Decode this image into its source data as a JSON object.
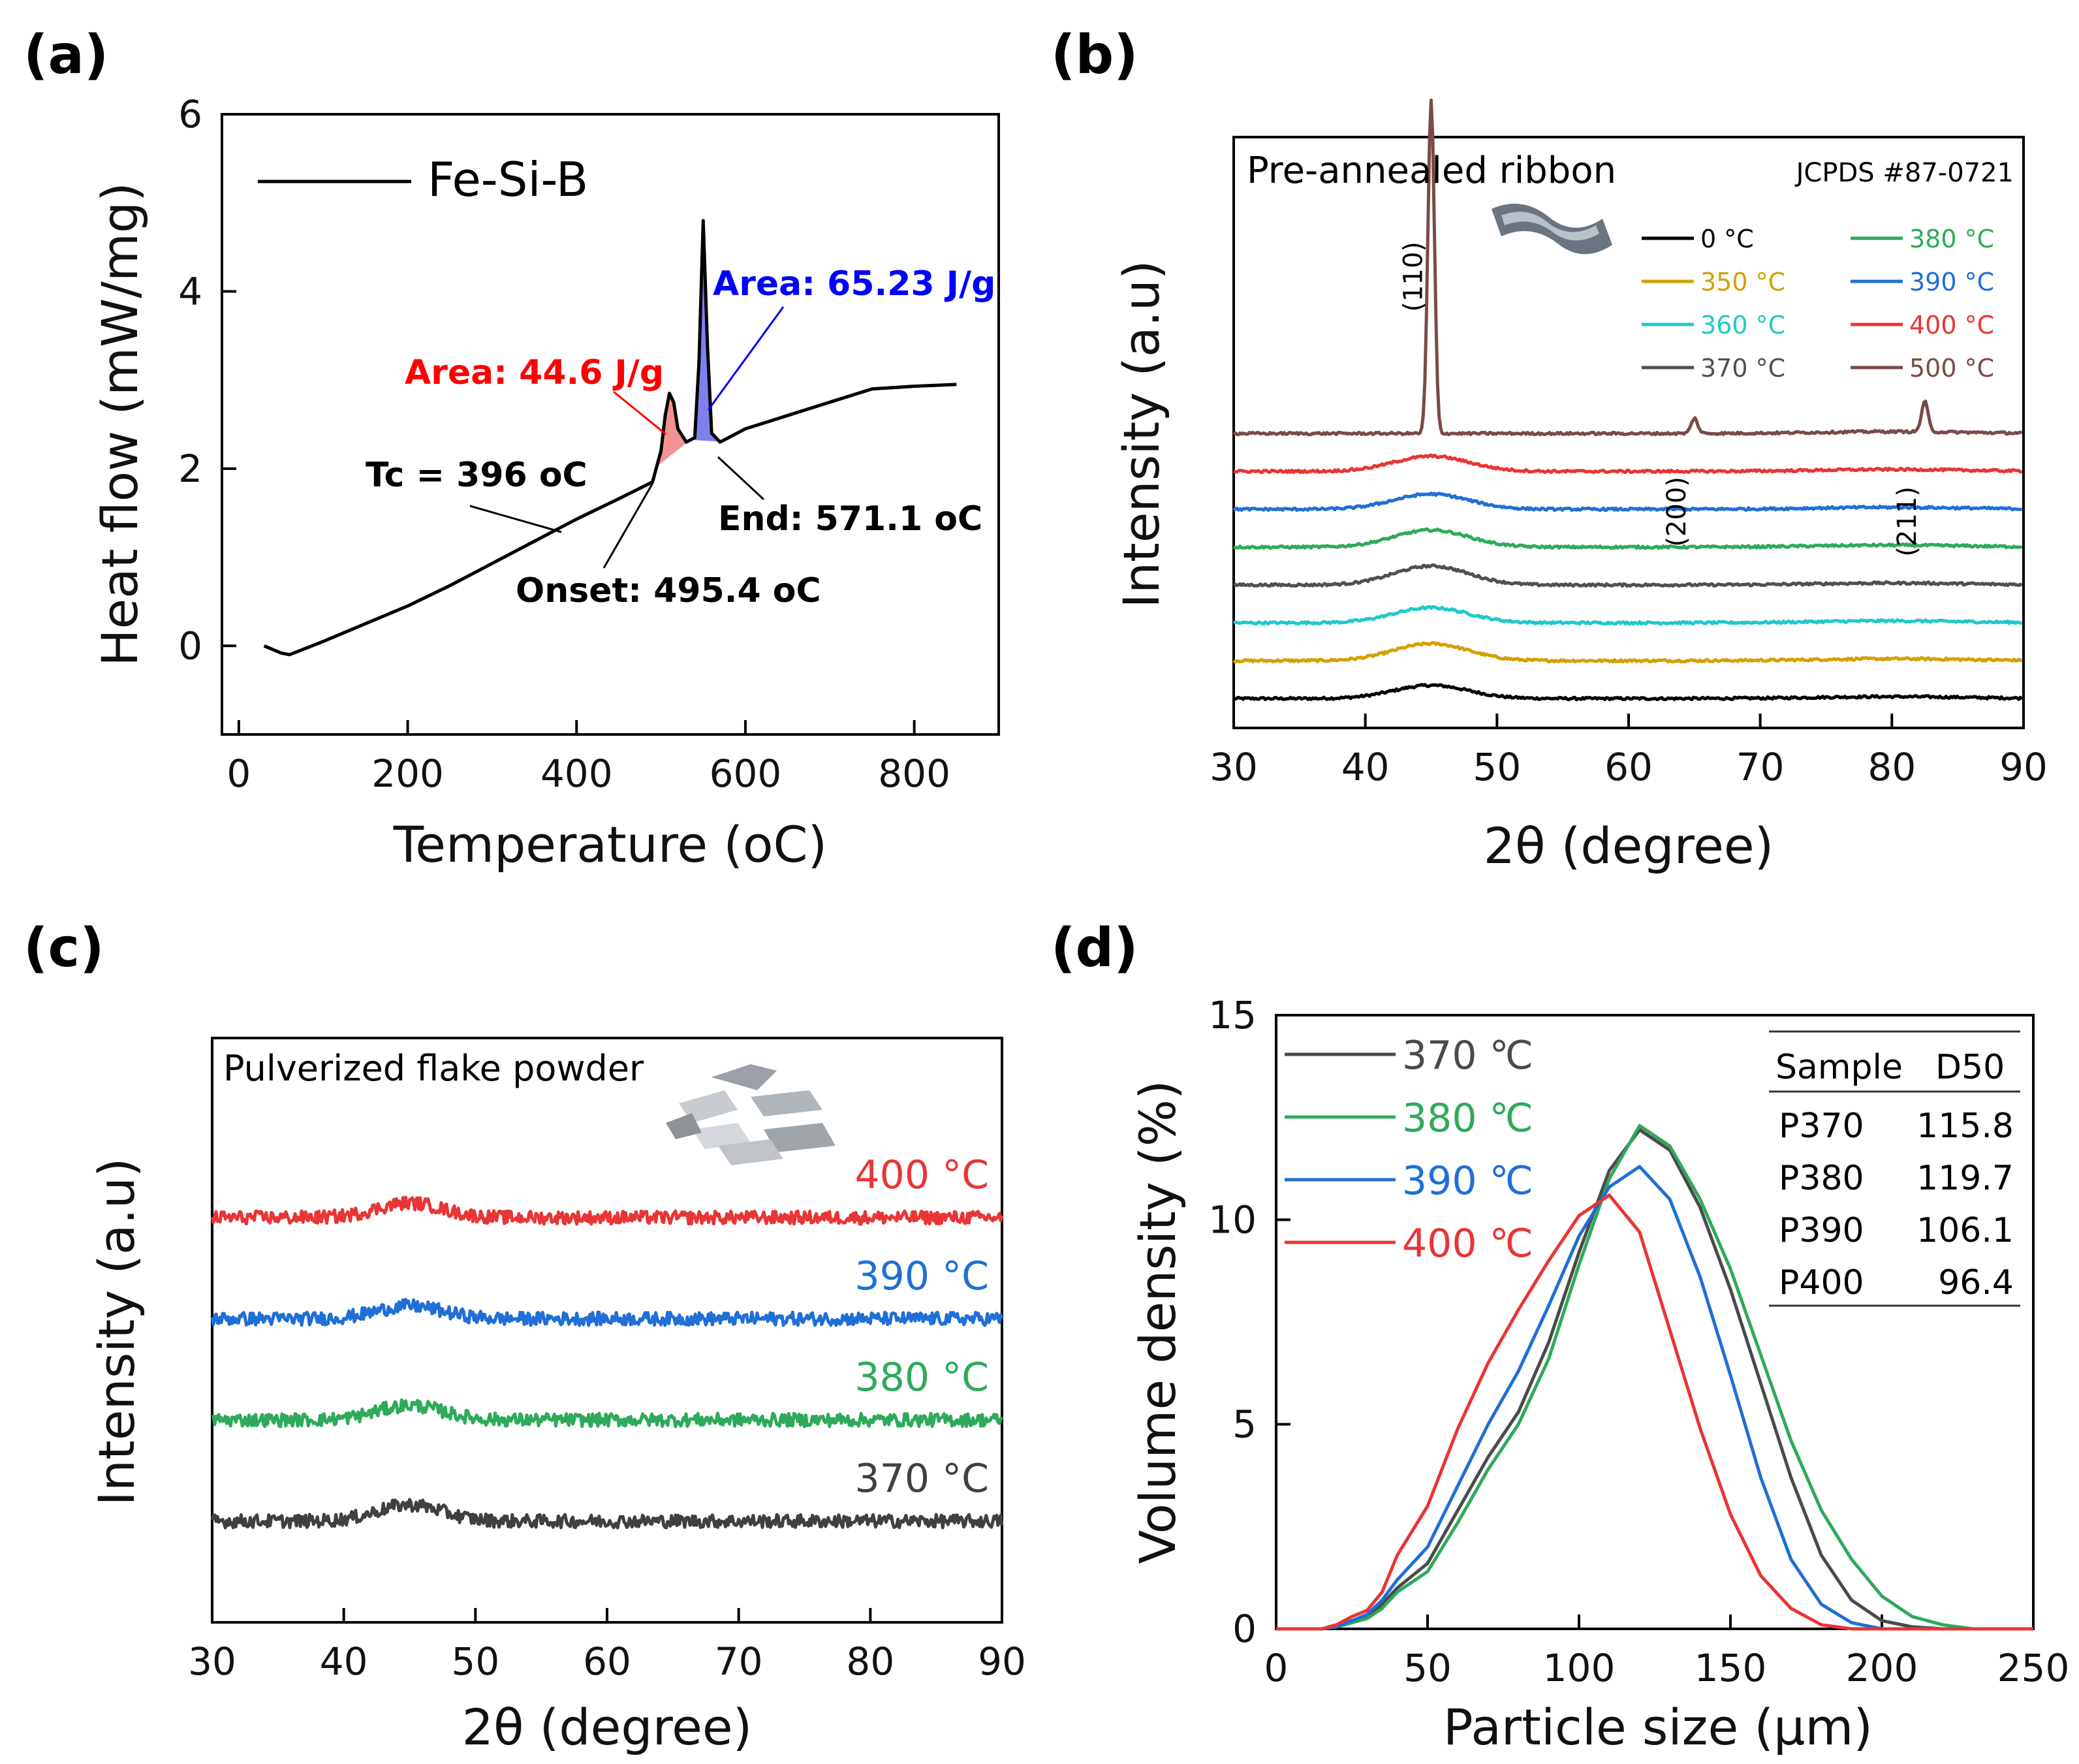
{
  "chart_data": [
    {
      "panel": "(a)",
      "type": "line",
      "xlabel": "Temperature (oC)",
      "ylabel": "Heat flow (mW/mg)",
      "xlim": [
        -20,
        900
      ],
      "ylim": [
        -1,
        6
      ],
      "xticks": [
        0,
        200,
        400,
        600,
        800
      ],
      "yticks": [
        0,
        2,
        4,
        6
      ],
      "legend": "Fe-Si-B",
      "series": [
        {
          "name": "Fe-Si-B",
          "color": "#000000",
          "x": [
            30,
            50,
            60,
            100,
            150,
            200,
            250,
            300,
            350,
            400,
            450,
            490,
            500,
            505,
            510,
            515,
            520,
            530,
            540,
            545,
            550,
            555,
            560,
            570,
            580,
            600,
            650,
            700,
            750,
            800,
            850
          ],
          "y": [
            0.0,
            -0.08,
            -0.1,
            0.05,
            0.25,
            0.45,
            0.68,
            0.93,
            1.18,
            1.43,
            1.66,
            1.85,
            2.2,
            2.6,
            2.85,
            2.75,
            2.45,
            2.3,
            2.35,
            3.2,
            4.8,
            3.4,
            2.4,
            2.3,
            2.35,
            2.45,
            2.6,
            2.75,
            2.9,
            2.93,
            2.95
          ]
        }
      ],
      "annotations": [
        {
          "text": "Area: 44.6 J/g",
          "color": "#ff0000"
        },
        {
          "text": "Area: 65.23 J/g",
          "color": "#0000ff"
        },
        {
          "text": "Tc = 396 oC",
          "color": "#000000"
        },
        {
          "text": "Onset: 495.4 oC",
          "color": "#000000"
        },
        {
          "text": "End: 571.1 oC",
          "color": "#000000"
        }
      ],
      "shaded_peaks": [
        {
          "x_from": 495,
          "x_to": 535,
          "color": "#f08080"
        },
        {
          "x_from": 535,
          "x_to": 571,
          "color": "#6a6ae8"
        }
      ]
    },
    {
      "panel": "(b)",
      "type": "line",
      "title": "Pre-annealed ribbon",
      "reference": "JCPDS #87-0721",
      "xlabel": "2θ (degree)",
      "ylabel": "Intensity (a.u)",
      "xlim": [
        30,
        90
      ],
      "xticks": [
        30,
        40,
        50,
        60,
        70,
        80,
        90
      ],
      "peak_labels": [
        {
          "text": "(110)",
          "x": 45
        },
        {
          "text": "(200)",
          "x": 65
        },
        {
          "text": "(211)",
          "x": 82.5
        }
      ],
      "series": [
        {
          "name": "0 °C",
          "color": "#000000",
          "baseline": 0,
          "hump": 0.35
        },
        {
          "name": "350 °C",
          "color": "#d4a000",
          "baseline": 1,
          "hump": 0.45
        },
        {
          "name": "360 °C",
          "color": "#22c8c8",
          "baseline": 2,
          "hump": 0.4
        },
        {
          "name": "370 °C",
          "color": "#505050",
          "baseline": 3,
          "hump": 0.5
        },
        {
          "name": "380 °C",
          "color": "#2eaa5a",
          "baseline": 4,
          "hump": 0.45
        },
        {
          "name": "390 °C",
          "color": "#1f6fd6",
          "baseline": 5,
          "hump": 0.4
        },
        {
          "name": "400 °C",
          "color": "#e83535",
          "baseline": 6,
          "hump": 0.4
        },
        {
          "name": "500 °C",
          "color": "#7a4a48",
          "baseline": 7,
          "hump": 0,
          "peaks": [
            [
              45,
              8.8
            ],
            [
              65,
              0.4
            ],
            [
              82.5,
              0.8
            ]
          ]
        }
      ]
    },
    {
      "panel": "(c)",
      "type": "line",
      "title": "Pulverized flake powder",
      "xlabel": "2θ (degree)",
      "ylabel": "Intensity (a.u)",
      "xlim": [
        30,
        90
      ],
      "xticks": [
        30,
        40,
        50,
        60,
        70,
        80,
        90
      ],
      "series": [
        {
          "name": "370 °C",
          "color": "#404040",
          "baseline": 0,
          "hump": 0.9
        },
        {
          "name": "380 °C",
          "color": "#2eaa5a",
          "baseline": 1,
          "hump": 0.8
        },
        {
          "name": "390 °C",
          "color": "#1f6fd6",
          "baseline": 2,
          "hump": 0.7
        },
        {
          "name": "400 °C",
          "color": "#e83535",
          "baseline": 3,
          "hump": 0.8
        }
      ]
    },
    {
      "panel": "(d)",
      "type": "line",
      "xlabel": "Particle size (μm)",
      "ylabel": "Volume density (%)",
      "xlim": [
        0,
        250
      ],
      "ylim": [
        0,
        15
      ],
      "xticks": [
        0,
        50,
        100,
        150,
        200,
        250
      ],
      "yticks": [
        0,
        5,
        10,
        15
      ],
      "x": [
        0,
        15,
        20,
        25,
        30,
        35,
        40,
        50,
        60,
        70,
        80,
        90,
        100,
        110,
        120,
        130,
        140,
        150,
        160,
        170,
        180,
        190,
        200,
        210,
        220,
        230,
        240,
        250
      ],
      "series": [
        {
          "name": "370 ℃",
          "color": "#4a4a4a",
          "values": [
            0,
            0,
            0.05,
            0.2,
            0.3,
            0.6,
            1.0,
            1.6,
            2.9,
            4.2,
            5.3,
            7.0,
            9.2,
            11.2,
            12.2,
            11.7,
            10.3,
            8.3,
            6.0,
            3.7,
            1.8,
            0.7,
            0.2,
            0.05,
            0,
            0,
            0,
            0
          ]
        },
        {
          "name": "380 ℃",
          "color": "#2eaa5a",
          "values": [
            0,
            0,
            0.05,
            0.15,
            0.25,
            0.5,
            0.9,
            1.4,
            2.6,
            3.9,
            5.0,
            6.6,
            8.9,
            11.0,
            12.3,
            11.8,
            10.5,
            8.8,
            6.7,
            4.6,
            2.9,
            1.7,
            0.8,
            0.3,
            0.1,
            0,
            0,
            0
          ]
        },
        {
          "name": "390 ℃",
          "color": "#1f6fd6",
          "values": [
            0,
            0,
            0.05,
            0.2,
            0.35,
            0.7,
            1.2,
            2.0,
            3.5,
            5.0,
            6.3,
            7.9,
            9.6,
            10.8,
            11.3,
            10.5,
            8.6,
            6.2,
            3.7,
            1.7,
            0.6,
            0.15,
            0,
            0,
            0,
            0,
            0,
            0
          ]
        },
        {
          "name": "400 ℃",
          "color": "#e83535",
          "values": [
            0,
            0,
            0.1,
            0.3,
            0.45,
            0.9,
            1.8,
            3.0,
            4.9,
            6.5,
            7.8,
            9.0,
            10.1,
            10.6,
            9.7,
            7.3,
            4.9,
            2.8,
            1.3,
            0.5,
            0.1,
            0,
            0,
            0,
            0,
            0,
            0,
            0
          ]
        }
      ],
      "table": {
        "headers": [
          "Sample",
          "D50"
        ],
        "rows": [
          [
            "P370",
            "115.8"
          ],
          [
            "P380",
            "119.7"
          ],
          [
            "P390",
            "106.1"
          ],
          [
            "P400",
            "96.4"
          ]
        ]
      }
    }
  ]
}
